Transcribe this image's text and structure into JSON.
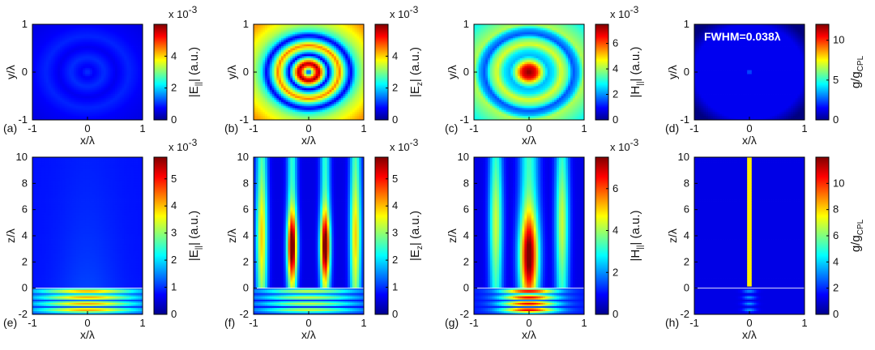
{
  "chart_data": [
    {
      "panel": "(a)",
      "type": "heatmap",
      "map": "circular",
      "xlabel": "x/λ",
      "ylabel": "y/λ",
      "xlim": [
        -1,
        1
      ],
      "ylim": [
        -1,
        1
      ],
      "xticks": [
        "-1",
        "0",
        "1"
      ],
      "yticks": [
        "-1",
        "0",
        "1"
      ],
      "colorbar": {
        "label": "|E",
        "sub": "||",
        "tail": "| (a.u.)",
        "multiplier": "x 10",
        "exponent": "-3",
        "ticks": [
          "0",
          "2",
          "4"
        ],
        "range": [
          0,
          6
        ]
      }
    },
    {
      "panel": "(b)",
      "type": "heatmap",
      "map": "circular",
      "xlabel": "x/λ",
      "ylabel": "y/λ",
      "xlim": [
        -1,
        1
      ],
      "ylim": [
        -1,
        1
      ],
      "xticks": [
        "-1",
        "0",
        "1"
      ],
      "yticks": [
        "-1",
        "0",
        "1"
      ],
      "colorbar": {
        "label": "|E",
        "sub": "z",
        "tail": "| (a.u.)",
        "multiplier": "x 10",
        "exponent": "-3",
        "ticks": [
          "0",
          "2",
          "4"
        ],
        "range": [
          0,
          6
        ]
      }
    },
    {
      "panel": "(c)",
      "type": "heatmap",
      "map": "circular",
      "xlabel": "x/λ",
      "ylabel": "y/λ",
      "xlim": [
        -1,
        1
      ],
      "ylim": [
        -1,
        1
      ],
      "xticks": [
        "-1",
        "0",
        "1"
      ],
      "yticks": [
        "-1",
        "0",
        "1"
      ],
      "colorbar": {
        "label": "|H",
        "sub": "||",
        "tail": "| (a.u.)",
        "multiplier": "x 10",
        "exponent": "-3",
        "ticks": [
          "0",
          "2",
          "4",
          "6"
        ],
        "range": [
          0,
          7.5
        ]
      }
    },
    {
      "panel": "(d)",
      "type": "heatmap",
      "map": "circular",
      "xlabel": "x/λ",
      "ylabel": "y/λ",
      "xlim": [
        -1,
        1
      ],
      "ylim": [
        -1,
        1
      ],
      "xticks": [
        "-1",
        "0",
        "1"
      ],
      "yticks": [
        "-1",
        "0",
        "1"
      ],
      "annotation": "FWHM=0.038λ",
      "colorbar": {
        "label": "g/g",
        "sub": "CPL",
        "tail": "",
        "multiplier": "",
        "exponent": "",
        "ticks": [
          "0",
          "5",
          "10"
        ],
        "range": [
          0,
          12
        ]
      }
    },
    {
      "panel": "(e)",
      "type": "heatmap",
      "map": "propagation",
      "xlabel": "x/λ",
      "ylabel": "z/λ",
      "xlim": [
        -1,
        1
      ],
      "ylim": [
        -2,
        10
      ],
      "xticks": [
        "-1",
        "0",
        "1"
      ],
      "yticks": [
        "-2",
        "0",
        "2",
        "4",
        "6",
        "8",
        "10"
      ],
      "colorbar": {
        "label": "|E",
        "sub": "||",
        "tail": "| (a.u.)",
        "multiplier": "x 10",
        "exponent": "-3",
        "ticks": [
          "0",
          "1",
          "2",
          "3",
          "4",
          "5"
        ],
        "range": [
          0,
          5.8
        ]
      }
    },
    {
      "panel": "(f)",
      "type": "heatmap",
      "map": "propagation",
      "xlabel": "x/λ",
      "ylabel": "z/λ",
      "xlim": [
        -1,
        1
      ],
      "ylim": [
        -2,
        10
      ],
      "xticks": [
        "-1",
        "0",
        "1"
      ],
      "yticks": [
        "-2",
        "0",
        "2",
        "4",
        "6",
        "8",
        "10"
      ],
      "colorbar": {
        "label": "|E",
        "sub": "z",
        "tail": "| (a.u.)",
        "multiplier": "x 10",
        "exponent": "-3",
        "ticks": [
          "0",
          "1",
          "2",
          "3",
          "4",
          "5"
        ],
        "range": [
          0,
          5.8
        ]
      }
    },
    {
      "panel": "(g)",
      "type": "heatmap",
      "map": "propagation",
      "xlabel": "x/λ",
      "ylabel": "z/λ",
      "xlim": [
        -1,
        1
      ],
      "ylim": [
        -2,
        10
      ],
      "xticks": [
        "-1",
        "0",
        "1"
      ],
      "yticks": [
        "-2",
        "0",
        "2",
        "4",
        "6",
        "8",
        "10"
      ],
      "colorbar": {
        "label": "|H",
        "sub": "||",
        "tail": "| (a.u.)",
        "multiplier": "x 10",
        "exponent": "-3",
        "ticks": [
          "0",
          "2",
          "4",
          "6"
        ],
        "range": [
          0,
          7.5
        ]
      }
    },
    {
      "panel": "(h)",
      "type": "heatmap",
      "map": "propagation",
      "xlabel": "x/λ",
      "ylabel": "z/λ",
      "xlim": [
        -1,
        1
      ],
      "ylim": [
        -2,
        10
      ],
      "xticks": [
        "-1",
        "0",
        "1"
      ],
      "yticks": [
        "-2",
        "0",
        "2",
        "4",
        "6",
        "8",
        "10"
      ],
      "colorbar": {
        "label": "g/g",
        "sub": "CPL",
        "tail": "",
        "multiplier": "",
        "exponent": "",
        "ticks": [
          "0",
          "2",
          "4",
          "6",
          "8",
          "10"
        ],
        "range": [
          0,
          12
        ]
      }
    }
  ]
}
